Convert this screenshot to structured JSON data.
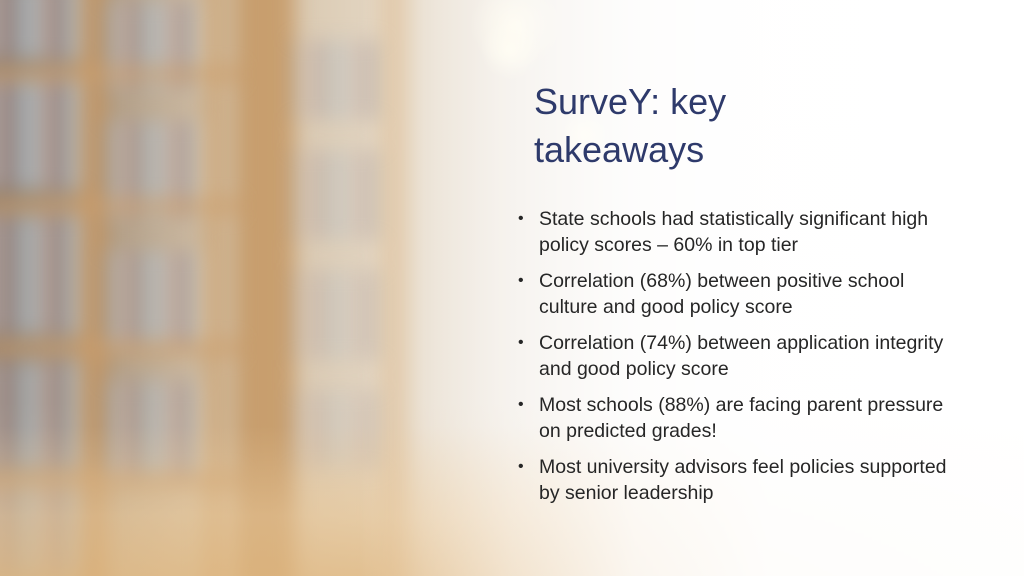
{
  "slide": {
    "title_line1": "SurveY: key",
    "title_line2": "takeaways",
    "bullets": [
      "State schools had statistically significant high policy scores – 60% in top tier",
      "Correlation (68%) between positive school culture and good policy score",
      "Correlation (74%) between application integrity and good policy score",
      "Most schools (88%) are facing parent pressure on predicted grades!",
      "Most university advisors feel policies supported by senior leadership"
    ],
    "bullet_glyph": "•"
  },
  "colors": {
    "title": "#2e3a6b",
    "body_text": "#262626",
    "background_right": "#fbfaf9"
  },
  "background": {
    "description_icon": "blurred-library-bookshelves-photo"
  }
}
